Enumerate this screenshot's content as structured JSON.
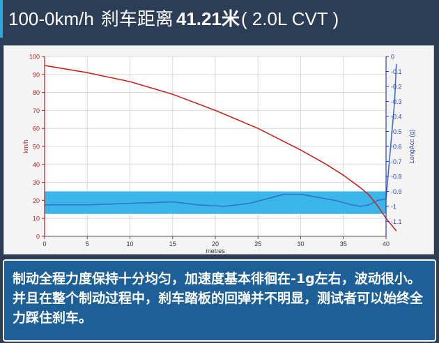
{
  "header": {
    "speed_range": "100-0km/h",
    "label": "刹车距离",
    "value": "41.21",
    "unit": "米",
    "spec": "( 2.0L CVT )"
  },
  "chart_data": {
    "type": "line",
    "xlabel": "metres",
    "ylabel_left": "km/h",
    "ylabel_right": "LongAcc (g)",
    "xlim": [
      0,
      40
    ],
    "ylim_left": [
      0,
      100
    ],
    "ylim_right": [
      -1.2,
      0
    ],
    "x_ticks": [
      0,
      5,
      10,
      15,
      20,
      25,
      30,
      35,
      40
    ],
    "y_ticks_left": [
      0,
      10,
      20,
      30,
      40,
      50,
      60,
      70,
      80,
      90,
      100
    ],
    "y_ticks_right": [
      0,
      -0.1,
      -0.2,
      -0.3,
      -0.4,
      -0.5,
      -0.6,
      -0.7,
      -0.8,
      -0.9,
      -1,
      -1.1
    ],
    "grid": true,
    "highlight_band": {
      "axis": "right",
      "from": -0.9,
      "to": -1.05,
      "color": "#2ab0e6"
    },
    "series": [
      {
        "axis": "left",
        "color": "#c8241c",
        "x": [
          0,
          5,
          10,
          15,
          20,
          25,
          30,
          33,
          35,
          37,
          38,
          39,
          40,
          41.21
        ],
        "y": [
          95,
          91,
          86,
          79,
          70,
          60,
          48,
          40,
          34,
          27,
          23,
          17,
          10,
          3
        ]
      },
      {
        "axis": "right",
        "color": "#3a6fd0",
        "x": [
          0,
          5,
          10,
          15,
          18,
          21,
          24,
          26,
          28,
          30,
          32,
          34,
          36,
          37,
          38,
          39,
          40,
          41,
          41.21
        ],
        "y": [
          -0.99,
          -0.99,
          -0.98,
          -0.97,
          -0.99,
          -1.0,
          -0.98,
          -0.95,
          -0.92,
          -0.92,
          -0.94,
          -0.96,
          -0.99,
          -1.0,
          -0.99,
          -0.96,
          -0.95,
          -0.3,
          -0.05
        ]
      }
    ]
  },
  "caption": {
    "text": "制动全程力度保持十分均匀，加速度基本徘徊在-1g左右，波动很小。并且在整个制动过程中，刹车踏板的回弹并不明显，测试者可以始终全力踩住刹车。"
  }
}
